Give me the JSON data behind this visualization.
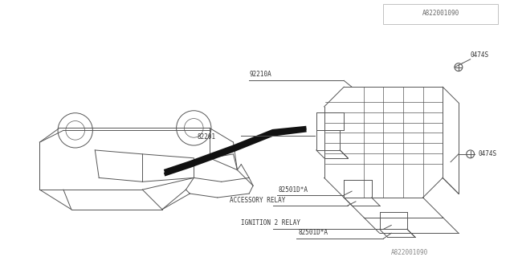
{
  "bg_color": "#ffffff",
  "line_color": "#555555",
  "text_color": "#333333",
  "diagram_title": "A822001090",
  "labels": {
    "ignition_part": "82501D*A",
    "ignition_label": "IGNITION 2 RELAY",
    "accessory_label": "ACCESSORY RELAY",
    "accessory_part": "82501D*A",
    "main_part": "82201",
    "bottom_part": "92210A",
    "bolt1": "0474S",
    "bolt2": "0474S"
  },
  "fig_width": 6.4,
  "fig_height": 3.2,
  "dpi": 100
}
